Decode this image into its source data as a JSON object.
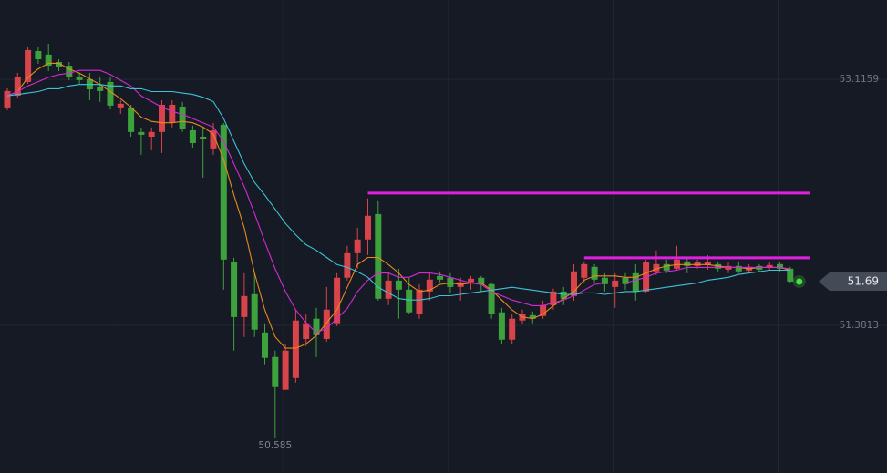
{
  "chart_data": {
    "type": "candlestick",
    "ylim": [
      50.34,
      53.676
    ],
    "yticks": [
      51.3813,
      53.1159
    ],
    "grid": true,
    "up_color": "#d9434a",
    "down_color": "#3ea23c",
    "open": [
      52.918,
      53.001,
      53.098,
      53.316,
      53.291,
      53.239,
      53.213,
      53.13,
      53.117,
      53.066,
      53.098,
      52.918,
      52.918,
      52.745,
      52.712,
      52.745,
      52.809,
      52.924,
      52.757,
      52.712,
      52.629,
      52.796,
      51.826,
      51.44,
      51.601,
      51.331,
      51.158,
      50.927,
      51.01,
      51.285,
      51.428,
      51.285,
      51.396,
      51.717,
      51.89,
      51.987,
      52.166,
      51.569,
      51.697,
      51.633,
      51.46,
      51.62,
      51.729,
      51.717,
      51.652,
      51.685,
      51.717,
      51.672,
      51.473,
      51.28,
      51.415,
      51.453,
      51.447,
      51.524,
      51.62,
      51.588,
      51.717,
      51.794,
      51.717,
      51.652,
      51.717,
      51.749,
      51.62,
      51.762,
      51.813,
      51.781,
      51.832,
      51.8,
      51.807,
      51.813,
      51.774,
      51.8,
      51.768,
      51.8,
      51.787,
      51.813,
      51.781
    ],
    "high": [
      53.053,
      53.162,
      53.342,
      53.342,
      53.368,
      53.258,
      53.239,
      53.162,
      53.162,
      53.13,
      53.13,
      52.969,
      52.937,
      52.777,
      52.777,
      52.969,
      52.969,
      52.957,
      52.79,
      52.777,
      52.809,
      52.809,
      51.858,
      51.749,
      51.749,
      51.396,
      51.203,
      51.248,
      51.492,
      51.46,
      51.505,
      51.652,
      51.749,
      51.942,
      52.07,
      52.276,
      52.263,
      51.749,
      51.781,
      51.717,
      51.672,
      51.749,
      51.762,
      51.749,
      51.717,
      51.729,
      51.729,
      51.685,
      51.505,
      51.46,
      51.492,
      51.479,
      51.556,
      51.64,
      51.652,
      51.813,
      51.832,
      51.813,
      51.749,
      51.749,
      51.749,
      51.813,
      51.845,
      51.909,
      51.845,
      51.942,
      51.858,
      51.845,
      51.877,
      51.832,
      51.826,
      51.832,
      51.813,
      51.813,
      51.826,
      51.826,
      51.794
    ],
    "low": [
      52.899,
      52.982,
      53.085,
      53.226,
      53.175,
      53.175,
      53.111,
      53.085,
      52.969,
      52.957,
      52.905,
      52.873,
      52.712,
      52.584,
      52.616,
      52.597,
      52.777,
      52.745,
      52.635,
      52.423,
      52.584,
      51.633,
      51.203,
      51.299,
      51.299,
      51.107,
      50.585,
      50.927,
      50.978,
      51.235,
      51.158,
      51.267,
      51.376,
      51.697,
      51.781,
      51.877,
      51.556,
      51.524,
      51.428,
      51.46,
      51.428,
      51.556,
      51.685,
      51.607,
      51.556,
      51.633,
      51.62,
      51.428,
      51.248,
      51.248,
      51.389,
      51.396,
      51.428,
      51.492,
      51.524,
      51.556,
      51.685,
      51.685,
      51.62,
      51.505,
      51.633,
      51.556,
      51.607,
      51.736,
      51.749,
      51.768,
      51.749,
      51.781,
      51.774,
      51.762,
      51.749,
      51.749,
      51.749,
      51.762,
      51.774,
      51.762,
      51.68
    ],
    "close": [
      53.034,
      53.13,
      53.323,
      53.258,
      53.213,
      53.207,
      53.13,
      53.111,
      53.046,
      53.034,
      52.931,
      52.944,
      52.745,
      52.725,
      52.745,
      52.937,
      52.937,
      52.764,
      52.667,
      52.693,
      52.757,
      51.845,
      51.44,
      51.588,
      51.351,
      51.152,
      50.946,
      51.203,
      51.415,
      51.396,
      51.312,
      51.492,
      51.717,
      51.89,
      51.987,
      52.154,
      51.569,
      51.697,
      51.633,
      51.473,
      51.633,
      51.704,
      51.704,
      51.652,
      51.685,
      51.71,
      51.672,
      51.46,
      51.28,
      51.428,
      51.46,
      51.428,
      51.524,
      51.62,
      51.569,
      51.762,
      51.813,
      51.704,
      51.672,
      51.697,
      51.672,
      51.62,
      51.826,
      51.813,
      51.768,
      51.845,
      51.8,
      51.826,
      51.826,
      51.781,
      51.8,
      51.762,
      51.794,
      51.774,
      51.807,
      51.781,
      51.69
    ],
    "moving_averages": [
      {
        "color": "#e8891c",
        "values": [
          53.0,
          53.03,
          53.13,
          53.19,
          53.23,
          53.23,
          53.19,
          53.16,
          53.12,
          53.08,
          53.03,
          52.98,
          52.92,
          52.85,
          52.82,
          52.81,
          52.81,
          52.82,
          52.81,
          52.78,
          52.73,
          52.55,
          52.3,
          52.07,
          51.75,
          51.49,
          51.3,
          51.22,
          51.22,
          51.25,
          51.31,
          51.4,
          51.49,
          51.65,
          51.81,
          51.86,
          51.86,
          51.81,
          51.75,
          51.67,
          51.62,
          51.63,
          51.67,
          51.68,
          51.67,
          51.68,
          51.68,
          51.63,
          51.56,
          51.49,
          51.44,
          51.43,
          51.46,
          51.52,
          51.57,
          51.62,
          51.7,
          51.73,
          51.73,
          51.73,
          51.72,
          51.72,
          51.75,
          51.78,
          51.8,
          51.81,
          51.81,
          51.81,
          51.81,
          51.8,
          51.79,
          51.79,
          51.78,
          51.79,
          51.79,
          51.79,
          51.77
        ]
      },
      {
        "color": "#d42ad4",
        "values": [
          53.0,
          53.03,
          53.07,
          53.1,
          53.13,
          53.15,
          53.16,
          53.18,
          53.18,
          53.18,
          53.15,
          53.11,
          53.07,
          53.0,
          52.96,
          52.92,
          52.89,
          52.87,
          52.84,
          52.81,
          52.78,
          52.68,
          52.52,
          52.36,
          52.17,
          51.97,
          51.78,
          51.62,
          51.49,
          51.4,
          51.33,
          51.36,
          51.43,
          51.5,
          51.62,
          51.7,
          51.75,
          51.75,
          51.72,
          51.72,
          51.75,
          51.75,
          51.74,
          51.72,
          51.7,
          51.68,
          51.67,
          51.62,
          51.59,
          51.56,
          51.54,
          51.52,
          51.52,
          51.54,
          51.56,
          51.59,
          51.63,
          51.67,
          51.68,
          51.68,
          51.68,
          51.7,
          51.72,
          51.75,
          51.76,
          51.77,
          51.79,
          51.79,
          51.79,
          51.79,
          51.79,
          51.79,
          51.79,
          51.79,
          51.79,
          51.79,
          51.78
        ]
      },
      {
        "color": "#3ec3d3",
        "values": [
          53.0,
          53.01,
          53.02,
          53.03,
          53.05,
          53.05,
          53.07,
          53.08,
          53.08,
          53.08,
          53.07,
          53.07,
          53.05,
          53.05,
          53.03,
          53.03,
          53.03,
          53.02,
          53.01,
          52.99,
          52.96,
          52.84,
          52.68,
          52.52,
          52.39,
          52.3,
          52.2,
          52.1,
          52.02,
          51.95,
          51.91,
          51.86,
          51.81,
          51.79,
          51.76,
          51.72,
          51.65,
          51.61,
          51.57,
          51.56,
          51.56,
          51.57,
          51.59,
          51.59,
          51.6,
          51.61,
          51.62,
          51.63,
          51.64,
          51.65,
          51.64,
          51.63,
          51.62,
          51.61,
          51.6,
          51.6,
          51.61,
          51.61,
          51.6,
          51.61,
          51.62,
          51.62,
          51.63,
          51.64,
          51.65,
          51.66,
          51.67,
          51.68,
          51.7,
          51.71,
          51.72,
          51.74,
          51.75,
          51.76,
          51.77,
          51.77,
          51.77
        ]
      }
    ],
    "hlines": [
      {
        "value": 52.314,
        "from": 35,
        "color": "#e020e0"
      },
      {
        "value": 51.858,
        "from": 56,
        "color": "#e020e0"
      }
    ]
  }
}
